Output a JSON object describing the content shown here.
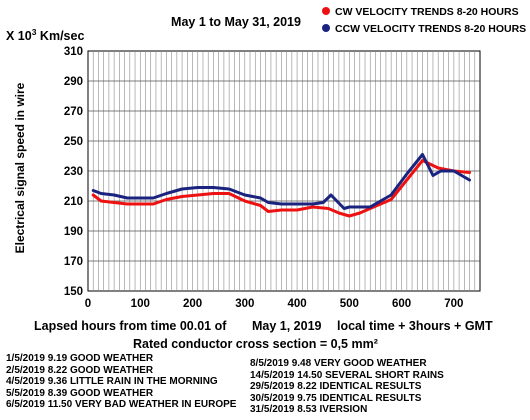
{
  "chart_data": {
    "type": "line",
    "title": "May  1 to  May 31, 2019",
    "y_unit_label_prefix": "X 10",
    "y_unit_label_exp": "3",
    "y_unit_label_suffix": " Km/sec",
    "ylabel": "Electrical signal speed in wire",
    "xlabel": "Lapsed hours from time 00.01 of",
    "xlabel_date": "May  1, 2019",
    "xlabel_tail": "local time  + 3hours + GMT",
    "subtitle": "Rated conductor cross section = 0,5 mm²",
    "xlim": [
      0,
      750
    ],
    "ylim": [
      150,
      310
    ],
    "x_ticks": [
      0,
      100,
      200,
      300,
      400,
      500,
      600,
      700
    ],
    "y_ticks": [
      150,
      170,
      190,
      210,
      230,
      250,
      270,
      290,
      310
    ],
    "grid": true,
    "legend_position": "top-right",
    "series": [
      {
        "name": "CW VELOCITY TRENDS 8-20 HOURS",
        "color": "#ee1111",
        "x": [
          10,
          25,
          50,
          75,
          100,
          125,
          150,
          180,
          210,
          240,
          270,
          300,
          330,
          345,
          370,
          400,
          430,
          460,
          480,
          500,
          520,
          540,
          580,
          610,
          640,
          670,
          700,
          730
        ],
        "y": [
          214,
          210,
          209,
          208,
          208,
          208,
          211,
          213,
          214,
          215,
          215,
          210,
          207,
          203,
          204,
          204,
          206,
          205,
          202,
          200,
          202,
          205,
          211,
          224,
          237,
          232,
          230,
          229
        ]
      },
      {
        "name": "CCW VELOCITY TRENDS 8-20 HOURS",
        "color": "#1a237e",
        "x": [
          10,
          25,
          50,
          75,
          100,
          125,
          150,
          180,
          210,
          240,
          270,
          300,
          330,
          345,
          370,
          400,
          430,
          450,
          465,
          490,
          500,
          520,
          540,
          580,
          610,
          640,
          660,
          675,
          700,
          730
        ],
        "y": [
          217,
          215,
          214,
          212,
          212,
          212,
          215,
          218,
          219,
          219,
          218,
          214,
          212,
          209,
          208,
          208,
          208,
          209,
          214,
          205,
          206,
          206,
          206,
          214,
          228,
          241,
          227,
          230,
          230,
          224
        ]
      }
    ]
  },
  "notes": {
    "left": [
      "1/5/2019  9.19 GOOD WEATHER",
      "2/5/2019  8.22 GOOD WEATHER",
      "4/5/2019  9.36 LITTLE RAIN IN THE MORNING",
      "5/5/2019  8.39 GOOD WEATHER",
      "6/5/2019 11.50 VERY BAD WEATHER IN EUROPE"
    ],
    "right": [
      "8/5/2019 9.48 VERY GOOD WEATHER",
      "14/5/2019 14.50 SEVERAL SHORT RAINS",
      "29/5/2019 8.22 IDENTICAL RESULTS",
      "30/5/2019 9.75 IDENTICAL RESULTS",
      "31/5/2019 8.53 IVERSION"
    ]
  }
}
